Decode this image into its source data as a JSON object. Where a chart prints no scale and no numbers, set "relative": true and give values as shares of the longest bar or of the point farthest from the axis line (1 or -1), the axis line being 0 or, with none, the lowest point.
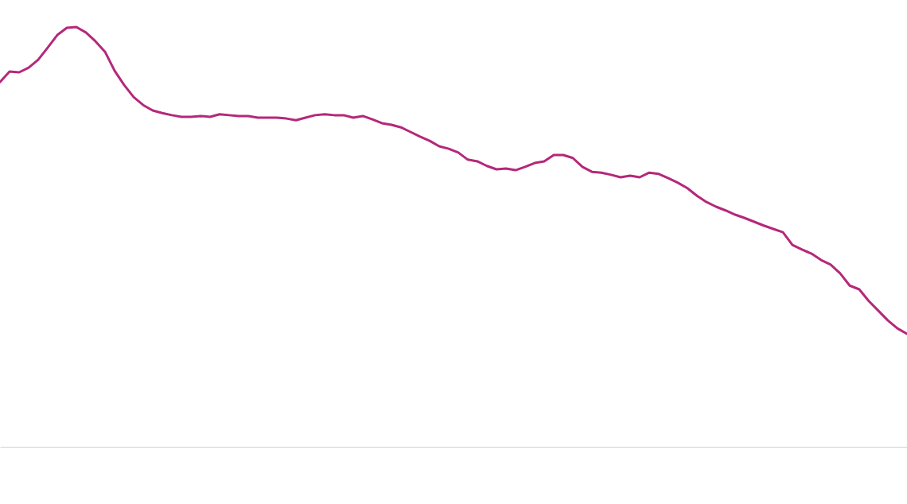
{
  "chart_data": {
    "type": "line",
    "relative": true,
    "tick_labels": false,
    "categories": [
      null,
      null,
      null,
      null,
      null,
      null,
      null,
      null,
      null,
      null,
      null,
      null,
      null,
      null,
      null,
      null,
      null,
      null,
      null,
      null,
      null,
      null,
      null,
      null,
      null,
      null,
      null,
      null,
      null,
      null,
      null,
      null,
      null,
      null,
      null,
      null,
      null,
      null,
      null,
      null,
      null,
      null,
      null,
      null,
      null,
      null,
      null,
      null,
      null,
      null,
      null,
      null,
      null,
      null,
      null,
      null,
      null,
      null,
      null,
      null,
      null,
      null,
      null,
      null,
      null,
      null,
      null,
      null,
      null,
      null,
      null,
      null,
      null,
      null,
      null,
      null,
      null,
      null,
      null,
      null,
      null,
      null,
      null,
      null,
      null,
      null,
      null,
      null,
      null,
      null,
      null,
      null,
      null,
      null,
      null,
      null
    ],
    "series": [
      {
        "color": "#b5287a",
        "values": [
          0.869,
          0.894,
          0.892,
          0.903,
          0.922,
          0.951,
          0.981,
          0.998,
          1,
          0.987,
          0.966,
          0.941,
          0.896,
          0.862,
          0.833,
          0.814,
          0.801,
          0.795,
          0.79,
          0.786,
          0.786,
          0.788,
          0.786,
          0.792,
          0.79,
          0.788,
          0.788,
          0.784,
          0.784,
          0.784,
          0.782,
          0.778,
          0.784,
          0.79,
          0.792,
          0.79,
          0.79,
          0.784,
          0.788,
          0.78,
          0.771,
          0.767,
          0.761,
          0.75,
          0.739,
          0.729,
          0.716,
          0.71,
          0.701,
          0.684,
          0.68,
          0.669,
          0.661,
          0.663,
          0.659,
          0.667,
          0.676,
          0.68,
          0.695,
          0.695,
          0.688,
          0.667,
          0.655,
          0.653,
          0.648,
          0.642,
          0.646,
          0.642,
          0.653,
          0.65,
          0.64,
          0.629,
          0.616,
          0.598,
          0.583,
          0.572,
          0.563,
          0.553,
          0.545,
          0.536,
          0.527,
          0.519,
          0.511,
          0.481,
          0.47,
          0.46,
          0.445,
          0.434,
          0.413,
          0.384,
          0.375,
          0.347,
          0.324,
          0.301,
          0.282,
          0.269
        ]
      }
    ],
    "marker": "none",
    "line_style": "solid"
  }
}
